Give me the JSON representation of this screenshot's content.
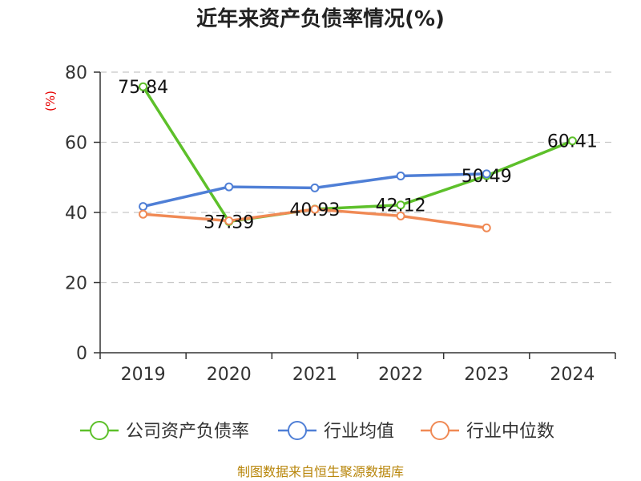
{
  "chart_data": {
    "type": "line",
    "title": "近年来资产负债率情况(%)",
    "ylabel": "(%)",
    "categories": [
      "2019",
      "2020",
      "2021",
      "2022",
      "2023",
      "2024"
    ],
    "ylim": [
      0,
      80
    ],
    "yticks": [
      0,
      20,
      40,
      60,
      80
    ],
    "grid": true,
    "legend_position": "bottom",
    "series": [
      {
        "name": "公司资产负债率",
        "color": "#5dc02a",
        "values": [
          75.84,
          37.39,
          40.93,
          42.12,
          50.49,
          60.41
        ],
        "labels": [
          "75.84",
          "37.39",
          "40.93",
          "42.12",
          "50.49",
          "60.41"
        ]
      },
      {
        "name": "行业均值",
        "color": "#4f7fd6",
        "values": [
          41.7,
          47.3,
          47.0,
          50.4,
          51.0,
          null
        ]
      },
      {
        "name": "行业中位数",
        "color": "#f08a55",
        "values": [
          39.5,
          37.6,
          40.9,
          39.0,
          35.6,
          null
        ]
      }
    ]
  },
  "source": "制图数据来自恒生聚源数据库"
}
